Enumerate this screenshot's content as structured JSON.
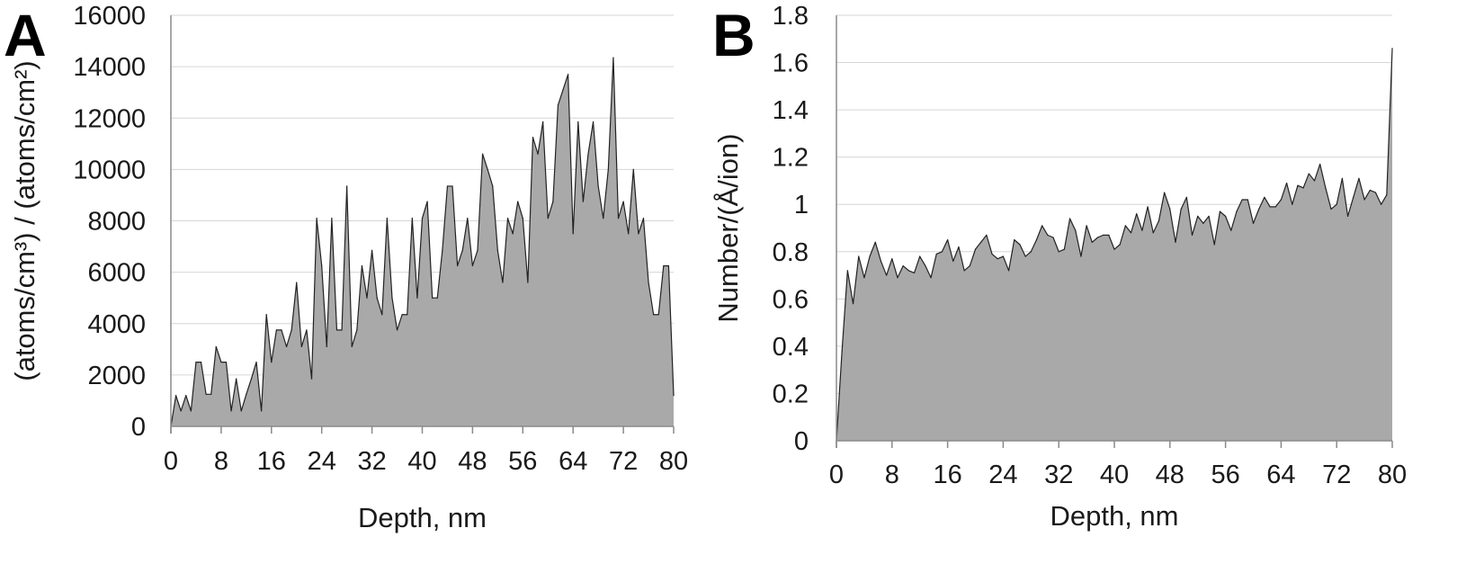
{
  "chart_data": [
    {
      "panel": "A",
      "type": "area",
      "xlabel": "Depth, nm",
      "ylabel": "(atoms/cm³) / (atoms/cm²)",
      "xlim": [
        0,
        80
      ],
      "ylim": [
        0,
        16000
      ],
      "x_ticks": [
        "0",
        "8",
        "16",
        "24",
        "32",
        "40",
        "48",
        "56",
        "64",
        "72",
        "80"
      ],
      "y_ticks": [
        "0",
        "2000",
        "4000",
        "6000",
        "8000",
        "10000",
        "12000",
        "14000",
        "16000"
      ],
      "grid": true,
      "fill_color": "#a9a9a9",
      "line_color": "#222222",
      "x": [
        0,
        0.8,
        1.6,
        2.4,
        3.2,
        4.0,
        4.8,
        5.6,
        6.4,
        7.2,
        8.0,
        8.8,
        9.6,
        10.4,
        11.2,
        12.0,
        12.8,
        13.6,
        14.4,
        15.2,
        16.0,
        16.8,
        17.6,
        18.4,
        19.2,
        20.0,
        20.8,
        21.6,
        22.4,
        23.2,
        24.0,
        24.8,
        25.6,
        26.4,
        27.2,
        28.0,
        28.8,
        29.6,
        30.4,
        31.2,
        32.0,
        32.8,
        33.6,
        34.4,
        35.2,
        36.0,
        36.8,
        37.6,
        38.4,
        39.2,
        40.0,
        40.8,
        41.6,
        42.4,
        43.2,
        44.0,
        44.8,
        45.6,
        46.4,
        47.2,
        48.0,
        48.8,
        49.6,
        50.4,
        51.2,
        52.0,
        52.8,
        53.6,
        54.4,
        55.2,
        56.0,
        56.8,
        57.6,
        58.4,
        59.2,
        60.0,
        60.8,
        61.6,
        62.4,
        63.2,
        64.0,
        64.8,
        65.6,
        66.4,
        67.2,
        68.0,
        68.8,
        69.6,
        70.4,
        71.2,
        72.0,
        72.8,
        73.6,
        74.4,
        75.2,
        76.0,
        76.8,
        77.6,
        78.4,
        79.2,
        80.0
      ],
      "y": [
        0,
        1200,
        600,
        1200,
        600,
        2500,
        2500,
        1250,
        1250,
        3100,
        2500,
        2500,
        600,
        1850,
        600,
        1250,
        1850,
        2500,
        600,
        4350,
        2500,
        3750,
        3750,
        3100,
        3750,
        5600,
        3100,
        3750,
        1850,
        8100,
        6250,
        3100,
        8100,
        3750,
        3750,
        9350,
        3100,
        3750,
        6250,
        5000,
        6850,
        5000,
        4350,
        8100,
        5000,
        3750,
        4350,
        4350,
        8100,
        5000,
        8100,
        8750,
        5000,
        5000,
        6850,
        9350,
        9350,
        6250,
        6850,
        8100,
        6250,
        6850,
        10600,
        10000,
        9350,
        6850,
        5600,
        8100,
        7500,
        8750,
        8100,
        5600,
        11250,
        10600,
        11850,
        8100,
        8750,
        12500,
        13100,
        13700,
        7500,
        11850,
        8750,
        10600,
        11850,
        9350,
        8100,
        10000,
        14350,
        8100,
        8750,
        7500,
        10000,
        7500,
        8100,
        5600,
        4350,
        4350,
        6250,
        6250,
        1200
      ]
    },
    {
      "panel": "B",
      "type": "area",
      "xlabel": "Depth, nm",
      "ylabel": "Number/(Å/ion)",
      "xlim": [
        0,
        80
      ],
      "ylim": [
        0,
        1.8
      ],
      "x_ticks": [
        "0",
        "8",
        "16",
        "24",
        "32",
        "40",
        "48",
        "56",
        "64",
        "72",
        "80"
      ],
      "y_ticks": [
        "0",
        "0.2",
        "0.4",
        "0.6",
        "0.8",
        "1",
        "1.2",
        "1.4",
        "1.6",
        "1.8"
      ],
      "grid": true,
      "fill_color": "#a9a9a9",
      "line_color": "#222222",
      "x": [
        0,
        0.8,
        1.6,
        2.4,
        3.2,
        4.0,
        4.8,
        5.6,
        6.4,
        7.2,
        8.0,
        8.8,
        9.6,
        10.4,
        11.2,
        12.0,
        12.8,
        13.6,
        14.4,
        15.2,
        16.0,
        16.8,
        17.6,
        18.4,
        19.2,
        20.0,
        20.8,
        21.6,
        22.4,
        23.2,
        24.0,
        24.8,
        25.6,
        26.4,
        27.2,
        28.0,
        28.8,
        29.6,
        30.4,
        31.2,
        32.0,
        32.8,
        33.6,
        34.4,
        35.2,
        36.0,
        36.8,
        37.6,
        38.4,
        39.2,
        40.0,
        40.8,
        41.6,
        42.4,
        43.2,
        44.0,
        44.8,
        45.6,
        46.4,
        47.2,
        48.0,
        48.8,
        49.6,
        50.4,
        51.2,
        52.0,
        52.8,
        53.6,
        54.4,
        55.2,
        56.0,
        56.8,
        57.6,
        58.4,
        59.2,
        60.0,
        60.8,
        61.6,
        62.4,
        63.2,
        64.0,
        64.8,
        65.6,
        66.4,
        67.2,
        68.0,
        68.8,
        69.6,
        70.4,
        71.2,
        72.0,
        72.8,
        73.6,
        74.4,
        75.2,
        76.0,
        76.8,
        77.6,
        78.4,
        79.2,
        80.0
      ],
      "y": [
        0,
        0.38,
        0.72,
        0.58,
        0.78,
        0.69,
        0.78,
        0.84,
        0.76,
        0.7,
        0.77,
        0.69,
        0.74,
        0.72,
        0.71,
        0.78,
        0.74,
        0.69,
        0.79,
        0.8,
        0.85,
        0.76,
        0.82,
        0.72,
        0.74,
        0.81,
        0.84,
        0.87,
        0.79,
        0.77,
        0.78,
        0.72,
        0.85,
        0.83,
        0.78,
        0.8,
        0.85,
        0.91,
        0.87,
        0.86,
        0.8,
        0.81,
        0.94,
        0.89,
        0.78,
        0.91,
        0.84,
        0.86,
        0.87,
        0.87,
        0.81,
        0.83,
        0.91,
        0.88,
        0.96,
        0.89,
        0.99,
        0.88,
        0.93,
        1.05,
        0.98,
        0.84,
        0.98,
        1.03,
        0.87,
        0.95,
        0.92,
        0.95,
        0.83,
        0.97,
        0.95,
        0.89,
        0.97,
        1.02,
        1.02,
        0.92,
        0.98,
        1.03,
        0.99,
        0.99,
        1.02,
        1.09,
        1.0,
        1.08,
        1.07,
        1.13,
        1.1,
        1.17,
        1.07,
        0.98,
        1.0,
        1.11,
        0.95,
        1.03,
        1.11,
        1.02,
        1.06,
        1.05,
        1.0,
        1.04,
        1.66
      ]
    }
  ]
}
